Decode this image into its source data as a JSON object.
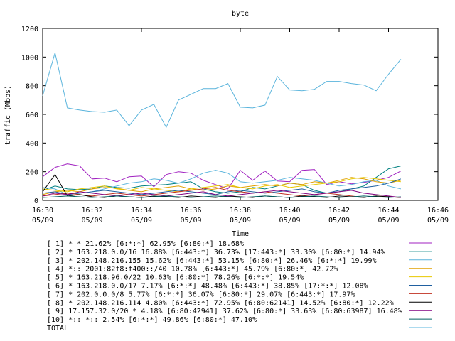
{
  "chart_data": {
    "type": "line",
    "title": "byte",
    "xlabel": "Time",
    "ylabel": "traffic (Mbps)",
    "ylim": [
      0,
      1200
    ],
    "yticks": [
      "0",
      "200",
      "400",
      "600",
      "800",
      "1000",
      "1200"
    ],
    "xlim": [
      "16:30",
      "16:46"
    ],
    "xticks": [
      {
        "time": "16:30",
        "date": "05/09"
      },
      {
        "time": "16:32",
        "date": "05/09"
      },
      {
        "time": "16:34",
        "date": "05/09"
      },
      {
        "time": "16:36",
        "date": "05/09"
      },
      {
        "time": "16:38",
        "date": "05/09"
      },
      {
        "time": "16:40",
        "date": "05/09"
      },
      {
        "time": "16:42",
        "date": "05/09"
      },
      {
        "time": "16:44",
        "date": "05/09"
      },
      {
        "time": "16:46",
        "date": "05/09"
      }
    ],
    "x": [
      "16:30",
      "16:30:30",
      "16:31",
      "16:31:30",
      "16:32",
      "16:32:30",
      "16:33",
      "16:33:30",
      "16:34",
      "16:34:30",
      "16:35",
      "16:35:30",
      "16:36",
      "16:36:30",
      "16:37",
      "16:37:30",
      "16:38",
      "16:38:30",
      "16:39",
      "16:39:30",
      "16:40",
      "16:40:30",
      "16:41",
      "16:41:30",
      "16:42",
      "16:42:30",
      "16:43",
      "16:43:30",
      "16:44",
      "16:44:30"
    ],
    "series": [
      {
        "name": "[ 1] * * 21.62%  [6:*:*] 62.95% [6:80:*] 18.68%",
        "color": "#a020c0",
        "values": [
          165,
          230,
          255,
          240,
          150,
          155,
          130,
          165,
          170,
          95,
          180,
          200,
          190,
          140,
          110,
          80,
          210,
          140,
          205,
          135,
          130,
          210,
          215,
          110,
          130,
          115,
          125,
          140,
          160,
          205
        ]
      },
      {
        "name": "[ 2] * 163.218.0.0/16 16.88%  [6:443:*] 36.73% [17:443:*] 33.30% [6:80:*] 14.94%",
        "color": "#008080",
        "values": [
          70,
          100,
          80,
          75,
          80,
          100,
          90,
          85,
          100,
          105,
          110,
          120,
          130,
          80,
          60,
          50,
          60,
          90,
          80,
          100,
          120,
          110,
          70,
          50,
          60,
          80,
          100,
          160,
          220,
          240
        ]
      },
      {
        "name": "[ 3] * 202.148.216.155 15.62%  [6:443:*] 53.15% [6:80:*] 26.46% [6:*:*] 19.99%",
        "color": "#5ab4dc",
        "values": [
          90,
          80,
          40,
          50,
          60,
          80,
          100,
          120,
          130,
          150,
          140,
          120,
          150,
          190,
          210,
          190,
          130,
          120,
          130,
          140,
          160,
          150,
          140,
          120,
          100,
          110,
          130,
          140,
          100,
          80
        ]
      },
      {
        "name": "[ 4] *:: 2001:82f8:f400::/40 10.78%  [6:443:*] 45.79% [6:80:*] 42.72%",
        "color": "#e0a000",
        "values": [
          40,
          60,
          70,
          60,
          80,
          90,
          85,
          70,
          60,
          80,
          90,
          100,
          80,
          70,
          80,
          100,
          90,
          100,
          110,
          100,
          120,
          110,
          130,
          120,
          140,
          160,
          150,
          130,
          120,
          140
        ]
      },
      {
        "name": "[ 5] * 163.218.96.0/22 10.63%  [6:80:*] 78.26% [6:*:*] 19.54%",
        "color": "#e8c800",
        "values": [
          80,
          70,
          60,
          80,
          90,
          100,
          80,
          70,
          90,
          80,
          70,
          60,
          80,
          90,
          100,
          110,
          90,
          80,
          100,
          110,
          90,
          100,
          110,
          120,
          130,
          150,
          160,
          150,
          140,
          130
        ]
      },
      {
        "name": "[ 6] * 163.218.0.0/17 7.17%  [6:*:*] 48.48% [6:443:*] 38.85% [17:*:*] 12.08%",
        "color": "#2060a0",
        "values": [
          50,
          60,
          40,
          50,
          60,
          70,
          60,
          50,
          40,
          50,
          60,
          70,
          60,
          50,
          40,
          60,
          70,
          60,
          50,
          60,
          70,
          80,
          60,
          50,
          70,
          80,
          90,
          100,
          120,
          150
        ]
      },
      {
        "name": "[ 7] * 202.0.0.0/8 5.77%  [6:*:*] 36.07% [6:80:*] 29.07% [6:443:*] 17.97%",
        "color": "#c03020",
        "values": [
          30,
          40,
          50,
          40,
          30,
          40,
          50,
          40,
          30,
          40,
          50,
          60,
          70,
          80,
          90,
          70,
          60,
          50,
          60,
          50,
          40,
          30,
          40,
          50,
          40,
          30,
          20,
          30,
          25,
          20
        ]
      },
      {
        "name": "[ 8] * 202.148.216.114 4.80%  [6:443:*] 72.95% [6:80:62141] 14.52% [6:80:*] 12.22%",
        "color": "#000000",
        "values": [
          60,
          180,
          30,
          40,
          25,
          20,
          30,
          25,
          20,
          30,
          25,
          20,
          30,
          25,
          20,
          30,
          25,
          20,
          30,
          25,
          20,
          30,
          25,
          20,
          30,
          25,
          20,
          30,
          25,
          20
        ]
      },
      {
        "name": "[ 9] 17.157.32.0/20 * 4.18%  [6:80:42941] 37.62% [6:80:*] 33.63% [6:80:63987] 16.48%",
        "color": "#800080",
        "values": [
          30,
          50,
          40,
          60,
          50,
          40,
          30,
          40,
          50,
          40,
          30,
          40,
          50,
          60,
          40,
          30,
          40,
          50,
          60,
          70,
          60,
          50,
          40,
          50,
          60,
          70,
          50,
          40,
          30,
          20
        ]
      },
      {
        "name": "[10] *:: *:: 2.54%  [6:*:*] 49.86% [6:80:*] 47.10%",
        "color": "#006060",
        "values": [
          20,
          25,
          30,
          25,
          20,
          25,
          30,
          25,
          20,
          25,
          30,
          25,
          20,
          25,
          30,
          25,
          20,
          25,
          30,
          25,
          20,
          25,
          30,
          25,
          20,
          25,
          30,
          25,
          20,
          25
        ]
      },
      {
        "name": "TOTAL",
        "color": "#5ab4dc",
        "values": [
          730,
          1030,
          645,
          630,
          620,
          615,
          630,
          520,
          630,
          670,
          510,
          700,
          740,
          780,
          780,
          815,
          650,
          645,
          665,
          865,
          770,
          765,
          775,
          830,
          830,
          815,
          805,
          765,
          880,
          985
        ]
      }
    ],
    "legend_placement": "bottom",
    "grid": false
  }
}
